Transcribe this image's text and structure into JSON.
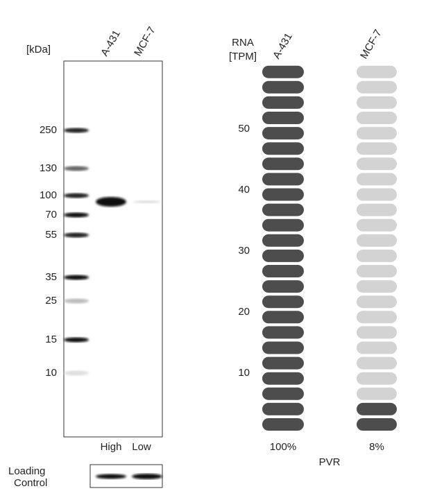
{
  "blot": {
    "unit_label": "[kDa]",
    "lanes": [
      "A-431",
      "MCF-7"
    ],
    "markers": [
      "250",
      "130",
      "100",
      "70",
      "55",
      "35",
      "25",
      "15",
      "10"
    ],
    "lane_levels": [
      "High",
      "Low"
    ],
    "loading_label": [
      "Loading",
      "Control"
    ]
  },
  "rna": {
    "axis_label": [
      "RNA",
      "[TPM]"
    ],
    "ticks": [
      50,
      40,
      30,
      20,
      10
    ],
    "samples": [
      {
        "name": "A-431",
        "percent": "100%"
      },
      {
        "name": "MCF-7",
        "percent": "8%"
      }
    ],
    "gene": "PVR"
  }
}
